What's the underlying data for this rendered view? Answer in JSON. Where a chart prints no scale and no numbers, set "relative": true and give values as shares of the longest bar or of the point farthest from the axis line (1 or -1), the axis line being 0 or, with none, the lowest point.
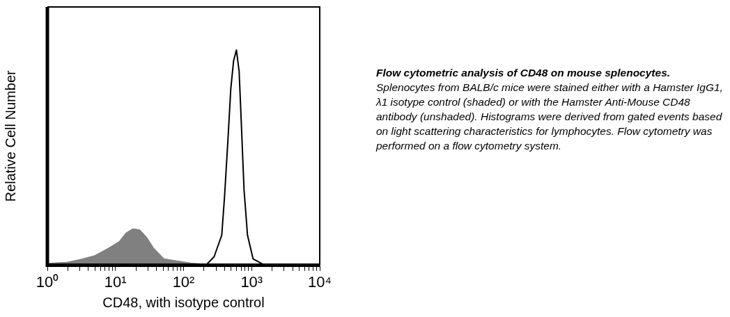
{
  "chart_data": {
    "type": "area",
    "xlabel": "CD48, with isotype control",
    "ylabel": "Relative Cell Number",
    "log": "x",
    "relative": true,
    "grid": false,
    "legend": false,
    "marker": "none",
    "xlim": [
      1,
      10000
    ],
    "xticks": [
      {
        "value": 1,
        "label": "10⁰"
      },
      {
        "value": 2,
        "label": null
      },
      {
        "value": 3,
        "label": null
      },
      {
        "value": 4,
        "label": null
      },
      {
        "value": 5,
        "label": null
      },
      {
        "value": 6,
        "label": null
      },
      {
        "value": 7,
        "label": null
      },
      {
        "value": 8,
        "label": null
      },
      {
        "value": 9,
        "label": null
      },
      {
        "value": 10,
        "label": "10¹"
      },
      {
        "value": 20,
        "label": null
      },
      {
        "value": 30,
        "label": null
      },
      {
        "value": 40,
        "label": null
      },
      {
        "value": 50,
        "label": null
      },
      {
        "value": 60,
        "label": null
      },
      {
        "value": 70,
        "label": null
      },
      {
        "value": 80,
        "label": null
      },
      {
        "value": 90,
        "label": null
      },
      {
        "value": 100,
        "label": "10²"
      },
      {
        "value": 200,
        "label": null
      },
      {
        "value": 300,
        "label": null
      },
      {
        "value": 400,
        "label": null
      },
      {
        "value": 500,
        "label": null
      },
      {
        "value": 600,
        "label": null
      },
      {
        "value": 700,
        "label": null
      },
      {
        "value": 800,
        "label": null
      },
      {
        "value": 900,
        "label": null
      },
      {
        "value": 1000,
        "label": "10³"
      },
      {
        "value": 2000,
        "label": null
      },
      {
        "value": 3000,
        "label": null
      },
      {
        "value": 4000,
        "label": null
      },
      {
        "value": 5000,
        "label": null
      },
      {
        "value": 6000,
        "label": null
      },
      {
        "value": 7000,
        "label": null
      },
      {
        "value": 8000,
        "label": null
      },
      {
        "value": 9000,
        "label": null
      },
      {
        "value": 10000,
        "label": "10⁴"
      }
    ],
    "series": [
      {
        "type": "area",
        "color": "#808080",
        "x": [
          1.07,
          1.93,
          3.1,
          4.94,
          7.9,
          11.3,
          14.2,
          18,
          22.8,
          28.8,
          36.4,
          51.8,
          82.8,
          132,
          212,
          338,
          540
        ],
        "values": [
          0.01,
          0.014,
          0.028,
          0.045,
          0.08,
          0.11,
          0.15,
          0.17,
          0.165,
          0.13,
          0.08,
          0.03,
          0.02,
          0.01,
          0.005,
          0.002,
          0
        ]
      },
      {
        "type": "line",
        "color": "#000000",
        "x": [
          212,
          281,
          364,
          400,
          450,
          494,
          543,
          597,
          655,
          703,
          773,
          869,
          1048,
          1563
        ],
        "values": [
          0,
          0.04,
          0.14,
          0.32,
          0.59,
          0.82,
          0.95,
          1,
          0.9,
          0.67,
          0.35,
          0.14,
          0.03,
          0
        ]
      }
    ],
    "annotations": [
      "Flow cytometric analysis of CD48 on mouse splenocytes.",
      "Splenocytes from BALB/c mice were stained either with a Hamster IgG1, λ1 isotype control (shaded) or with the Hamster Anti-Mouse CD48 antibody (unshaded).  Histograms were derived from gated events based on light scattering characteristics for lymphocytes.  Flow cytometry was performed on a flow cytometry system."
    ]
  }
}
